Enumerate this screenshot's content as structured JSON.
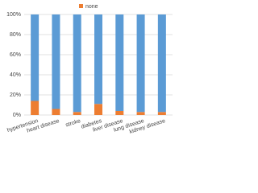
{
  "chart_data": {
    "type": "stacked_bar",
    "categories": [
      "hypertension",
      "heart disease",
      "stroke",
      "diabetes",
      "liver disease",
      "lung disease",
      "kidney disease"
    ],
    "series": [
      {
        "name": "none",
        "color": "#ed7d31",
        "values": [
          14,
          6,
          3,
          11,
          4,
          3,
          3
        ]
      },
      {
        "color": "#5b9bd5",
        "values": [
          86,
          94,
          97,
          89,
          96,
          97,
          97
        ]
      }
    ],
    "ylim": [
      0,
      100
    ],
    "yticks": [
      {
        "value": 0,
        "label": "0%"
      },
      {
        "value": 20,
        "label": "20%"
      },
      {
        "value": 40,
        "label": "40%"
      },
      {
        "value": 60,
        "label": "60%"
      },
      {
        "value": 80,
        "label": "80%"
      },
      {
        "value": 100,
        "label": "100%"
      }
    ],
    "grid": true,
    "legend": "top"
  }
}
